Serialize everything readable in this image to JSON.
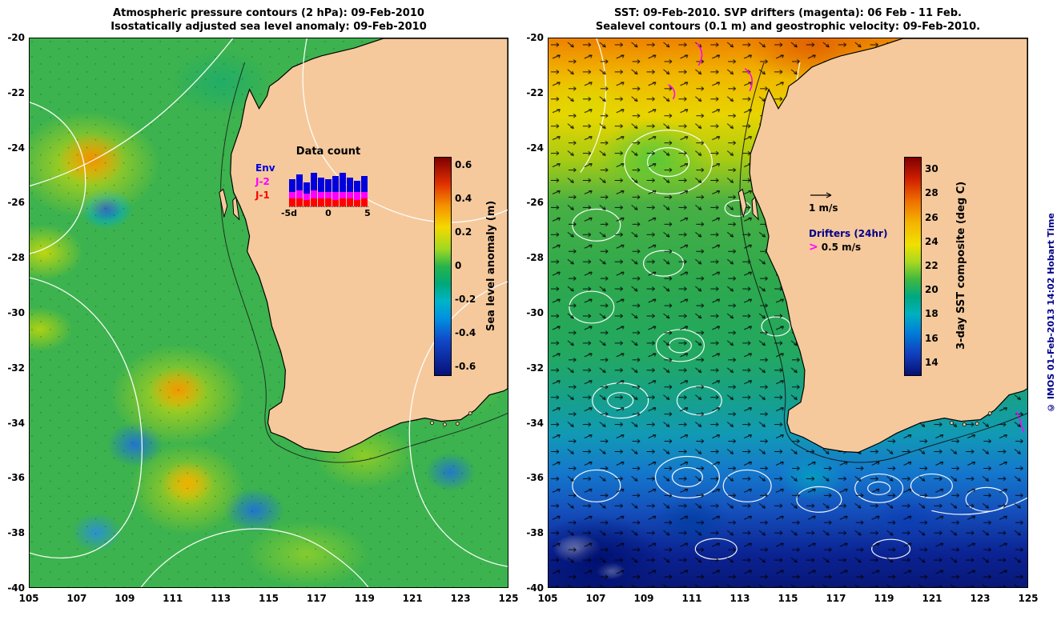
{
  "page": {
    "background": "#ffffff",
    "land_color": "#f5c99c"
  },
  "copyright": "© IMOS 01-Feb-2013 14:02 Hobart Time",
  "axes": {
    "x_ticks": [
      "105",
      "107",
      "109",
      "111",
      "113",
      "115",
      "117",
      "119",
      "121",
      "123",
      "125"
    ],
    "y_ticks": [
      "-20",
      "-22",
      "-24",
      "-26",
      "-28",
      "-30",
      "-32",
      "-34",
      "-36",
      "-38",
      "-40"
    ]
  },
  "left_panel": {
    "title_line1": "Atmospheric pressure contours (2 hPa): 09-Feb-2010",
    "title_line2": "Isostatically adjusted sea level anomaly: 09-Feb-2010",
    "colorbar": {
      "label": "Sea level anomaly (m)",
      "ticks": [
        "0.6",
        "0.4",
        "0.2",
        "0",
        "-0.2",
        "-0.4",
        "-0.6"
      ],
      "min": -0.6,
      "max": 0.6
    },
    "inset": {
      "title": "Data count",
      "legend": [
        {
          "label": "Env",
          "color": "#0000dd"
        },
        {
          "label": "J-2",
          "color": "#ff00ff"
        },
        {
          "label": "J-1",
          "color": "#ff0000"
        }
      ],
      "x_tick_labels": [
        "-5d",
        "0",
        "5"
      ],
      "days": [
        -5,
        -4,
        -3,
        -2,
        -1,
        0,
        1,
        2,
        3,
        4,
        5
      ],
      "series": [
        {
          "name": "J-1",
          "color": "#ff0000",
          "values": [
            5,
            5,
            4,
            5,
            5,
            5,
            4,
            5,
            5,
            4,
            5
          ]
        },
        {
          "name": "J-2",
          "color": "#ff00ff",
          "values": [
            4,
            5,
            4,
            5,
            4,
            4,
            5,
            4,
            4,
            5,
            4
          ]
        },
        {
          "name": "Env",
          "color": "#0000dd",
          "values": [
            8,
            10,
            7,
            11,
            9,
            8,
            10,
            12,
            9,
            7,
            10
          ]
        }
      ]
    }
  },
  "right_panel": {
    "title_line1": "SST: 09-Feb-2010. SVP drifters (magenta): 06 Feb - 11 Feb.",
    "title_line2": "Sealevel contours (0.1 m) and geostrophic velocity: 09-Feb-2010.",
    "colorbar": {
      "label": "3-day SST composite (deg C)",
      "ticks": [
        "30",
        "28",
        "26",
        "24",
        "22",
        "20",
        "18",
        "16",
        "14"
      ],
      "min": 13,
      "max": 31
    },
    "legend": {
      "velocity_label": "1 m/s",
      "drifters_title": "Drifters (24hr)",
      "drifters_speed": "0.5 m/s"
    },
    "drifter_color": "#ff00ff"
  },
  "chart_data": [
    {
      "type": "heatmap",
      "title": "Isostatically adjusted sea level anomaly: 09-Feb-2010",
      "overlay": "Atmospheric pressure contours (2 hPa): 09-Feb-2010 (white lines)",
      "x_range": [
        105,
        125
      ],
      "y_range": [
        -40,
        -20
      ],
      "x_ticks": [
        105,
        107,
        109,
        111,
        113,
        115,
        117,
        119,
        121,
        123,
        125
      ],
      "y_ticks": [
        -20,
        -22,
        -24,
        -26,
        -28,
        -30,
        -32,
        -34,
        -36,
        -38,
        -40
      ],
      "colorbar_label": "Sea level anomaly (m)",
      "colorbar_range": [
        -0.6,
        0.6
      ],
      "colorbar_ticks": [
        0.6,
        0.4,
        0.2,
        0,
        -0.2,
        -0.4,
        -0.6
      ],
      "legend_position": "inside-right"
    },
    {
      "type": "bar",
      "stacked": true,
      "title": "Data count",
      "x": [
        -5,
        -4,
        -3,
        -2,
        -1,
        0,
        1,
        2,
        3,
        4,
        5
      ],
      "x_tick_labels": [
        "-5d",
        "0",
        "5"
      ],
      "series": [
        {
          "name": "J-1",
          "values": [
            5,
            5,
            4,
            5,
            5,
            5,
            4,
            5,
            5,
            4,
            5
          ]
        },
        {
          "name": "J-2",
          "values": [
            4,
            5,
            4,
            5,
            4,
            4,
            5,
            4,
            4,
            5,
            4
          ]
        },
        {
          "name": "Env",
          "values": [
            8,
            10,
            7,
            11,
            9,
            8,
            10,
            12,
            9,
            7,
            10
          ]
        }
      ],
      "legend_position": "left"
    },
    {
      "type": "heatmap",
      "title": "SST: 09-Feb-2010. SVP drifters (magenta): 06 Feb - 11 Feb.",
      "overlays": [
        "Sealevel contours (0.1 m), white",
        "Geostrophic velocity arrows, black",
        "SVP drifter tracks, magenta"
      ],
      "x_range": [
        105,
        125
      ],
      "y_range": [
        -40,
        -20
      ],
      "x_ticks": [
        105,
        107,
        109,
        111,
        113,
        115,
        117,
        119,
        121,
        123,
        125
      ],
      "y_ticks": [
        -20,
        -22,
        -24,
        -26,
        -28,
        -30,
        -32,
        -34,
        -36,
        -38,
        -40
      ],
      "colorbar_label": "3-day SST composite (deg C)",
      "colorbar_range": [
        13,
        31
      ],
      "colorbar_ticks": [
        30,
        28,
        26,
        24,
        22,
        20,
        18,
        16,
        14
      ],
      "legend_position": "inside-right"
    }
  ]
}
